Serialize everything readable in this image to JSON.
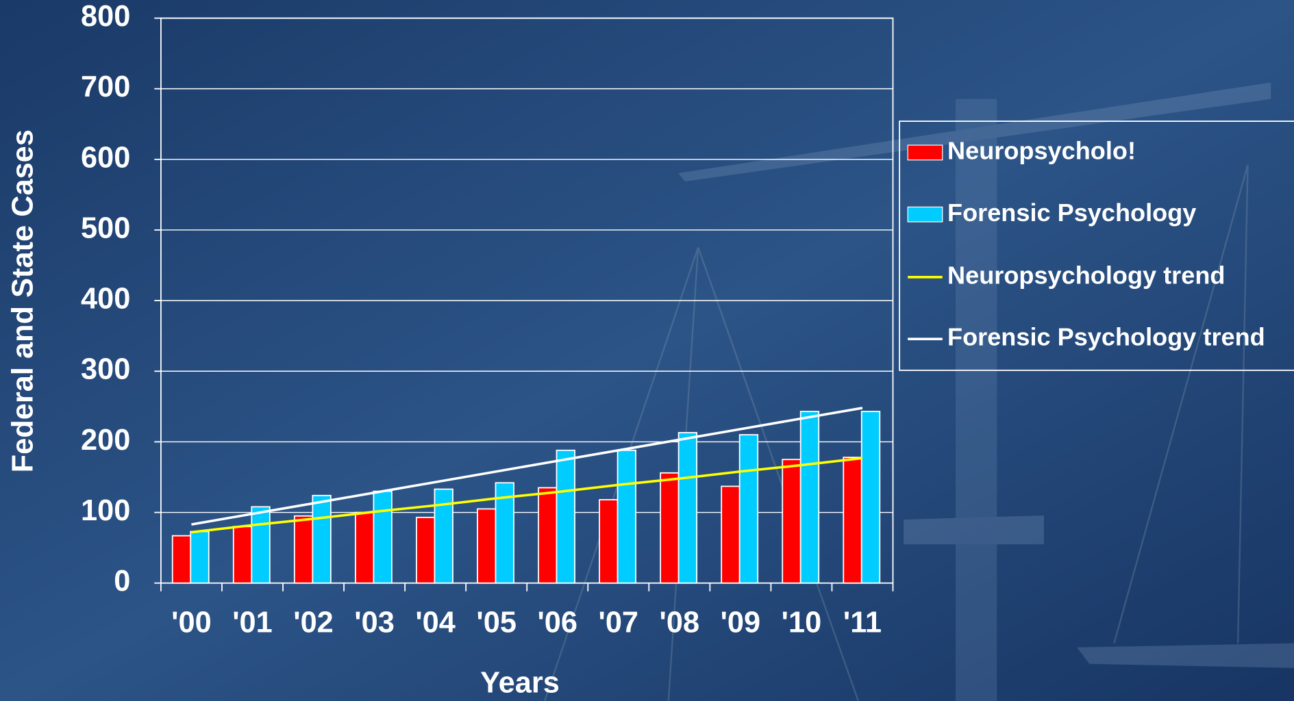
{
  "chart_data": {
    "type": "bar",
    "y_label": "Federal and State Cases",
    "x_label": "Years",
    "categories": [
      "'00",
      "'01",
      "'02",
      "'03",
      "'04",
      "'05",
      "'06",
      "'07",
      "'08",
      "'09",
      "'10",
      "'11"
    ],
    "series": [
      {
        "name": "Neuropsycholo!",
        "color": "#ff0000",
        "values": [
          67,
          80,
          95,
          100,
          93,
          105,
          135,
          118,
          156,
          137,
          175,
          178
        ]
      },
      {
        "name": "Forensic Psychology",
        "color": "#00ccff",
        "values": [
          73,
          108,
          124,
          130,
          133,
          142,
          188,
          188,
          213,
          210,
          243,
          243
        ]
      }
    ],
    "trends": [
      {
        "name": "Neuropsychology trend",
        "color": "#ffff00",
        "values": [
          72,
          82,
          91,
          101,
          110,
          120,
          129,
          139,
          148,
          158,
          167,
          177
        ]
      },
      {
        "name": "Forensic Psychology trend",
        "color": "#ffffff",
        "values": [
          83,
          98,
          113,
          128,
          143,
          158,
          173,
          188,
          203,
          218,
          233,
          248
        ]
      }
    ],
    "ylim": [
      0,
      800
    ],
    "yticks": [
      0,
      100,
      200,
      300,
      400,
      500,
      600,
      700,
      800
    ],
    "grid": true,
    "legend": "right"
  }
}
